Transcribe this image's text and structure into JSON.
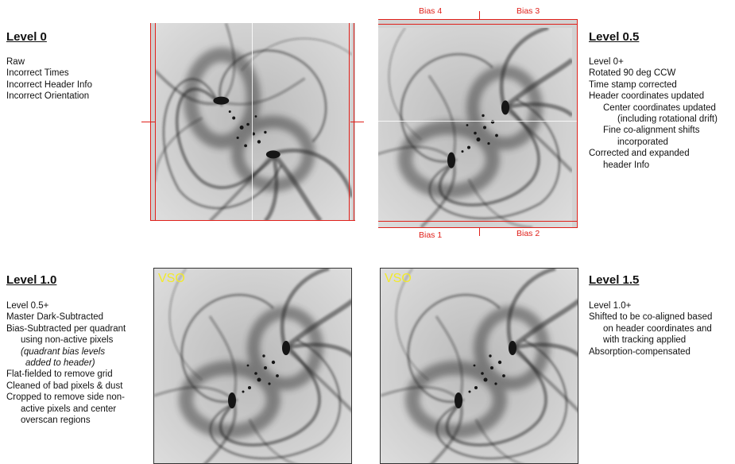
{
  "level_0": {
    "title": "Level 0",
    "lines": [
      "Raw",
      "Incorrect Times",
      "Incorrect Header Info",
      "Incorrect Orientation"
    ]
  },
  "level_05": {
    "title": "Level 0.5",
    "lines": [
      "Level 0+",
      "Rotated 90 deg CCW",
      "Time stamp corrected",
      "Header coordinates updated",
      "Center coordinates updated",
      "(including rotational drift)",
      "Fine co-alignment shifts",
      "incorporated",
      "Corrected and expanded",
      "header Info"
    ]
  },
  "level_10": {
    "title": "Level 1.0",
    "lines": [
      "Level 0.5+",
      "Master Dark-Subtracted",
      "Bias-Subtracted per quadrant",
      "using non-active pixels",
      "(quadrant bias levels",
      "added to header)",
      "Flat-fielded to remove grid",
      "Cleaned of bad pixels & dust",
      "Cropped to remove side non-",
      "active pixels and center",
      "overscan regions"
    ]
  },
  "level_15": {
    "title": "Level 1.5",
    "lines": [
      "Level 1.0+",
      "Shifted to be co-aligned based",
      "on header coordinates and",
      "with tracking applied",
      "Absorption-compensated"
    ]
  },
  "bias_labels": {
    "q1": "Bias 1",
    "q2": "Bias 2",
    "q3": "Bias 3",
    "q4": "Bias 4"
  },
  "watermark": "VSO",
  "colors": {
    "annotation_red": "#e0201a",
    "watermark_yellow": "#f2ea2a"
  }
}
